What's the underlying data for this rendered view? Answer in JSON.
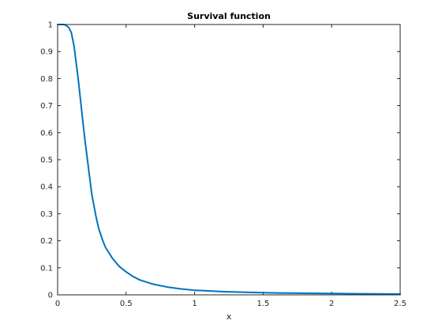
{
  "chart_data": {
    "type": "line",
    "title": "Survival function",
    "xlabel": "x",
    "ylabel": "",
    "xlim": [
      0,
      2.5
    ],
    "ylim": [
      0,
      1
    ],
    "xticks": [
      0,
      0.5,
      1,
      1.5,
      2,
      2.5
    ],
    "xtick_labels": [
      "0",
      "0.5",
      "1",
      "1.5",
      "2",
      "2.5"
    ],
    "yticks": [
      0,
      0.1,
      0.2,
      0.3,
      0.4,
      0.5,
      0.6,
      0.7,
      0.8,
      0.9,
      1
    ],
    "ytick_labels": [
      "0",
      "0.1",
      "0.2",
      "0.3",
      "0.4",
      "0.5",
      "0.6",
      "0.7",
      "0.8",
      "0.9",
      "1"
    ],
    "grid": false,
    "line_color": "#0072BD",
    "series": [
      {
        "x": [
          0,
          0.05,
          0.08,
          0.1,
          0.12,
          0.15,
          0.18,
          0.2,
          0.22,
          0.25,
          0.28,
          0.3,
          0.33,
          0.35,
          0.4,
          0.45,
          0.5,
          0.55,
          0.6,
          0.7,
          0.8,
          0.9,
          1.0,
          1.2,
          1.4,
          1.6,
          1.8,
          2.0,
          2.2,
          2.5
        ],
        "y": [
          1.0,
          1.0,
          0.99,
          0.97,
          0.92,
          0.8,
          0.66,
          0.57,
          0.49,
          0.37,
          0.29,
          0.245,
          0.2,
          0.175,
          0.135,
          0.105,
          0.085,
          0.068,
          0.055,
          0.039,
          0.029,
          0.022,
          0.017,
          0.012,
          0.009,
          0.007,
          0.006,
          0.005,
          0.004,
          0.003
        ]
      }
    ]
  }
}
